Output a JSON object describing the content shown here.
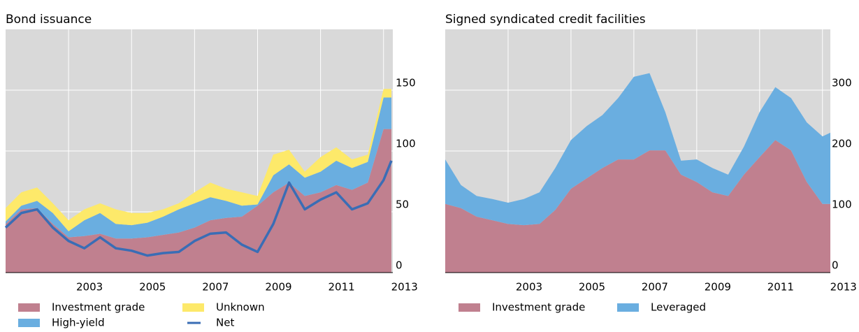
{
  "chart_data": [
    {
      "type": "area",
      "title": "Bond issuance",
      "stacked": true,
      "grid": true,
      "xlim": [
        2001,
        2013.25
      ],
      "xticks": [
        2003,
        2005,
        2007,
        2009,
        2011,
        2013
      ],
      "ylim": [
        0,
        200
      ],
      "yticks": [
        0,
        50,
        100,
        150
      ],
      "x": [
        2001,
        2001.5,
        2002,
        2002.5,
        2003,
        2003.5,
        2004,
        2004.5,
        2005,
        2005.5,
        2006,
        2006.5,
        2007,
        2007.5,
        2008,
        2008.5,
        2009,
        2009.5,
        2010,
        2010.5,
        2011,
        2011.5,
        2012,
        2012.5,
        2013,
        2013.25
      ],
      "series": [
        {
          "name": "Investment grade",
          "color": "#c0808f",
          "values": [
            40,
            52,
            53,
            40,
            29,
            30,
            32,
            28,
            28,
            29,
            31,
            33,
            37,
            43,
            45,
            46,
            55,
            66,
            74,
            63,
            66,
            72,
            68,
            74,
            118,
            118
          ]
        },
        {
          "name": "High-yield",
          "color": "#6aaee0",
          "values": [
            2,
            3,
            6,
            9,
            5,
            13,
            17,
            12,
            11,
            12,
            15,
            19,
            20,
            19,
            14,
            9,
            1,
            14,
            15,
            15,
            17,
            20,
            18,
            17,
            26,
            26
          ]
        },
        {
          "name": "Unknown",
          "color": "#fde96a",
          "values": [
            11,
            11,
            11,
            8,
            9,
            9,
            8,
            12,
            10,
            8,
            6,
            5,
            9,
            12,
            10,
            11,
            7,
            17,
            12,
            5,
            12,
            11,
            7,
            6,
            7,
            7
          ]
        },
        {
          "name": "Net",
          "color": "#3a6db5",
          "type": "line",
          "values": [
            37,
            49,
            52,
            37,
            26,
            20,
            29,
            20,
            18,
            14,
            16,
            17,
            26,
            32,
            33,
            23,
            17,
            40,
            74,
            52,
            60,
            66,
            52,
            57,
            76,
            92
          ]
        }
      ]
    },
    {
      "type": "area",
      "title": "Signed syndicated credit facilities",
      "stacked": true,
      "grid": true,
      "xlim": [
        2001,
        2013.25
      ],
      "xticks": [
        2003,
        2005,
        2007,
        2009,
        2011,
        2013
      ],
      "ylim": [
        0,
        400
      ],
      "yticks": [
        0,
        100,
        200,
        300
      ],
      "x": [
        2001,
        2001.5,
        2002,
        2002.5,
        2003,
        2003.5,
        2004,
        2004.5,
        2005,
        2005.5,
        2006,
        2006.5,
        2007,
        2007.5,
        2008,
        2008.5,
        2009,
        2009.5,
        2010,
        2010.5,
        2011,
        2011.5,
        2012,
        2012.5,
        2013,
        2013.25
      ],
      "series": [
        {
          "name": "Investment grade",
          "color": "#c0808f",
          "values": [
            113,
            106,
            92,
            86,
            80,
            78,
            80,
            103,
            138,
            155,
            172,
            186,
            186,
            201,
            201,
            161,
            149,
            132,
            126,
            161,
            190,
            218,
            201,
            149,
            113,
            113
          ]
        },
        {
          "name": "Leveraged",
          "color": "#6aaee0",
          "values": [
            73,
            38,
            34,
            35,
            35,
            43,
            52,
            69,
            80,
            86,
            87,
            101,
            136,
            127,
            63,
            23,
            37,
            40,
            35,
            46,
            74,
            87,
            86,
            98,
            111,
            117
          ]
        }
      ]
    }
  ]
}
